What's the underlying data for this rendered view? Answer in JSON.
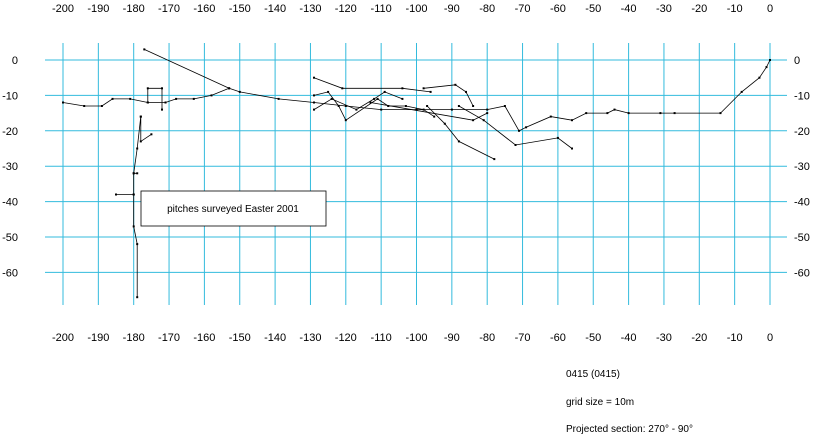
{
  "diagram": {
    "top_axis_labels": [
      "-200",
      "-190",
      "-180",
      "-170",
      "-160",
      "-150",
      "-140",
      "-130",
      "-120",
      "-110",
      "-100",
      "-90",
      "-80",
      "-70",
      "-60",
      "-50",
      "-40",
      "-30",
      "-20",
      "-10",
      "0"
    ],
    "bottom_axis_labels": [
      "-200",
      "-190",
      "-180",
      "-170",
      "-160",
      "-150",
      "-140",
      "-130",
      "-120",
      "-110",
      "-100",
      "-90",
      "-80",
      "-70",
      "-60",
      "-50",
      "-40",
      "-30",
      "-20",
      "-10",
      "0"
    ],
    "left_axis_labels": [
      "0",
      "-10",
      "-20",
      "-30",
      "-40",
      "-50",
      "-60"
    ],
    "right_axis_labels": [
      "0",
      "-10",
      "-20",
      "-30",
      "-40",
      "-50",
      "-60"
    ],
    "annotation": "pitches surveyed Easter 2001",
    "x_range": [
      -200,
      0
    ],
    "y_range": [
      -67,
      0
    ],
    "grid_size": 10,
    "colors": {
      "grid": "#33bbdd",
      "survey_line": "#000000",
      "background": "#ffffff"
    },
    "survey_polylines": [
      [
        [
          -200,
          -12
        ],
        [
          -194,
          -13
        ],
        [
          -189,
          -13
        ],
        [
          -186,
          -11
        ],
        [
          -181,
          -11
        ],
        [
          -176,
          -12
        ],
        [
          -171,
          -12
        ],
        [
          -168,
          -11
        ],
        [
          -163,
          -11
        ],
        [
          -158,
          -10
        ],
        [
          -153,
          -8
        ]
      ],
      [
        [
          -177,
          3
        ],
        [
          -153,
          -8
        ],
        [
          -150,
          -9
        ],
        [
          -139,
          -11
        ],
        [
          -129,
          -12
        ],
        [
          -120,
          -13
        ],
        [
          -110,
          -14
        ],
        [
          -100,
          -14
        ],
        [
          -90,
          -14
        ],
        [
          -80,
          -14
        ],
        [
          -75,
          -13
        ],
        [
          -71,
          -20
        ],
        [
          -69,
          -19
        ],
        [
          -62,
          -16
        ],
        [
          -56,
          -17
        ],
        [
          -52,
          -15
        ],
        [
          -46,
          -15
        ],
        [
          -44,
          -14
        ],
        [
          -40,
          -15
        ],
        [
          -31,
          -15
        ],
        [
          -27,
          -15
        ],
        [
          -14,
          -15
        ],
        [
          -8,
          -9
        ],
        [
          -3,
          -5
        ],
        [
          -1,
          -2
        ],
        [
          0,
          0
        ]
      ],
      [
        [
          -176,
          -12
        ],
        [
          -176,
          -8
        ],
        [
          -172,
          -8
        ],
        [
          -172,
          -14
        ]
      ],
      [
        [
          -178,
          -16
        ],
        [
          -178,
          -23
        ],
        [
          -175,
          -21
        ]
      ],
      [
        [
          -178,
          -16
        ],
        [
          -179,
          -25
        ],
        [
          -180,
          -32
        ],
        [
          -179,
          -32
        ]
      ],
      [
        [
          -180,
          -32
        ],
        [
          -180,
          -38
        ],
        [
          -185,
          -38
        ],
        [
          -180,
          -38
        ],
        [
          -180,
          -47
        ],
        [
          -179,
          -52
        ],
        [
          -179,
          -67
        ]
      ],
      [
        [
          -129,
          -5
        ],
        [
          -121,
          -8
        ],
        [
          -104,
          -8
        ],
        [
          -96,
          -9
        ]
      ],
      [
        [
          -129,
          -10
        ],
        [
          -125,
          -9
        ],
        [
          -122,
          -13
        ],
        [
          -120,
          -17
        ],
        [
          -111,
          -11
        ],
        [
          -108,
          -13
        ],
        [
          -103,
          -13
        ],
        [
          -98,
          -14
        ],
        [
          -95,
          -16
        ]
      ],
      [
        [
          -129,
          -14
        ],
        [
          -124,
          -11
        ],
        [
          -117,
          -14
        ],
        [
          -112,
          -11
        ],
        [
          -109,
          -9
        ],
        [
          -104,
          -11
        ]
      ],
      [
        [
          -97,
          -13
        ],
        [
          -92,
          -18
        ],
        [
          -88,
          -23
        ],
        [
          -78,
          -28
        ]
      ],
      [
        [
          -98,
          -8
        ],
        [
          -89,
          -7
        ],
        [
          -86,
          -9
        ],
        [
          -84,
          -13
        ]
      ],
      [
        [
          -88,
          -13
        ],
        [
          -81,
          -17
        ],
        [
          -72,
          -24
        ],
        [
          -60,
          -22
        ],
        [
          -56,
          -25
        ]
      ],
      [
        [
          -113,
          -12
        ],
        [
          -84,
          -17
        ],
        [
          -80,
          -15
        ]
      ]
    ]
  },
  "info": {
    "code": "0415 (0415)",
    "grid": "grid size = 10m",
    "projection": "Projected section: 270° - 90°"
  }
}
